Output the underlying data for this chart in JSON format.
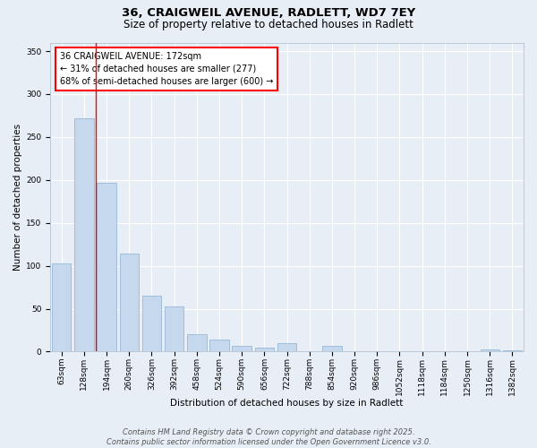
{
  "title_line1": "36, CRAIGWEIL AVENUE, RADLETT, WD7 7EY",
  "title_line2": "Size of property relative to detached houses in Radlett",
  "xlabel": "Distribution of detached houses by size in Radlett",
  "ylabel": "Number of detached properties",
  "bar_color": "#c5d8ed",
  "bar_edge_color": "#8ab0d0",
  "categories": [
    "63sqm",
    "128sqm",
    "194sqm",
    "260sqm",
    "326sqm",
    "392sqm",
    "458sqm",
    "524sqm",
    "590sqm",
    "656sqm",
    "722sqm",
    "788sqm",
    "854sqm",
    "920sqm",
    "986sqm",
    "1052sqm",
    "1118sqm",
    "1184sqm",
    "1250sqm",
    "1316sqm",
    "1382sqm"
  ],
  "values": [
    103,
    272,
    197,
    114,
    65,
    53,
    20,
    14,
    7,
    5,
    10,
    0,
    7,
    0,
    0,
    0,
    0,
    0,
    0,
    3,
    2
  ],
  "ylim": [
    0,
    360
  ],
  "yticks": [
    0,
    50,
    100,
    150,
    200,
    250,
    300,
    350
  ],
  "vline_x": 1.5,
  "annotation_text": "36 CRAIGWEIL AVENUE: 172sqm\n← 31% of detached houses are smaller (277)\n68% of semi-detached houses are larger (600) →",
  "annotation_box_color": "white",
  "annotation_box_edge_color": "red",
  "vline_color": "red",
  "background_color": "#e8eef6",
  "grid_color": "white",
  "footer_text": "Contains HM Land Registry data © Crown copyright and database right 2025.\nContains public sector information licensed under the Open Government Licence v3.0.",
  "title_fontsize": 9.5,
  "subtitle_fontsize": 8.5,
  "axis_label_fontsize": 7.5,
  "tick_fontsize": 6.5,
  "annotation_fontsize": 7,
  "footer_fontsize": 6
}
